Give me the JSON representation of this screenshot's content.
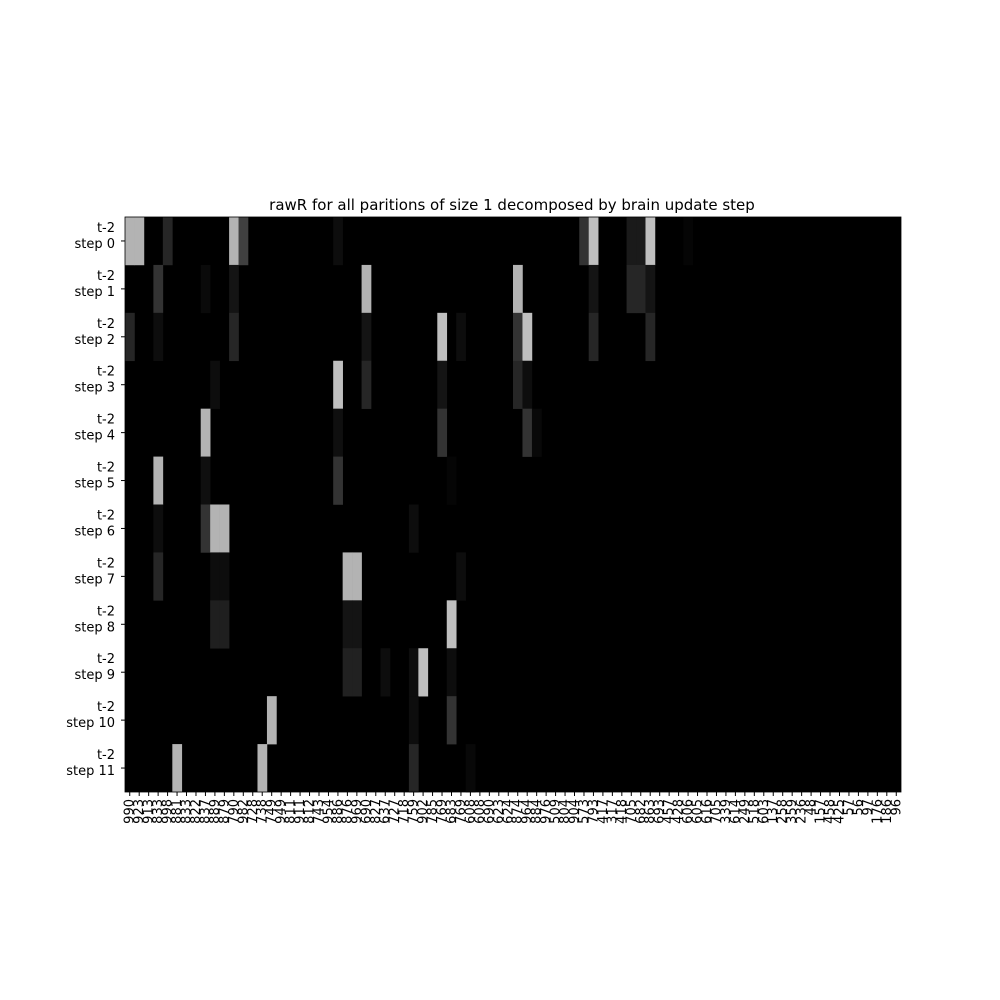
{
  "chart_data": {
    "type": "heatmap",
    "title": "rawR for all paritions of size 1 decomposed by brain update step",
    "colormap": "gray",
    "value_range": [
      0,
      1
    ],
    "colorbar": false,
    "y_labels": [
      [
        "t-2",
        "step 0"
      ],
      [
        "t-2",
        "step 1"
      ],
      [
        "t-2",
        "step 2"
      ],
      [
        "t-2",
        "step 3"
      ],
      [
        "t-2",
        "step 4"
      ],
      [
        "t-2",
        "step 5"
      ],
      [
        "t-2",
        "step 6"
      ],
      [
        "t-2",
        "step 7"
      ],
      [
        "t-2",
        "step 8"
      ],
      [
        "t-2",
        "step 9"
      ],
      [
        "t-2",
        "step 10"
      ],
      [
        "t-2",
        "step 11"
      ]
    ],
    "x_labels": [
      "990",
      "923",
      "913",
      "833",
      "998",
      "881",
      "833",
      "822",
      "837",
      "889",
      "879",
      "790",
      "982",
      "728",
      "738",
      "749",
      "949",
      "811",
      "911",
      "812",
      "743",
      "954",
      "886",
      "876",
      "969",
      "690",
      "827",
      "637",
      "727",
      "718",
      "759",
      "902",
      "785",
      "769",
      "683",
      "769",
      "608",
      "608",
      "690",
      "623",
      "624",
      "874",
      "964",
      "884",
      "976",
      "509",
      "804",
      "904",
      "573",
      "793",
      "417",
      "317",
      "418",
      "705",
      "682",
      "863",
      "693",
      "457",
      "428",
      "606",
      "605",
      "616",
      "705",
      "339",
      "614",
      "249",
      "518",
      "603",
      "137",
      "258",
      "359",
      "236",
      "48",
      "157",
      "458",
      "425",
      "57",
      "56",
      "97",
      "176",
      "186",
      "96"
    ],
    "cells": [
      [
        0,
        0,
        0.7
      ],
      [
        0,
        1,
        0.7
      ],
      [
        0,
        4,
        0.15
      ],
      [
        0,
        11,
        0.7
      ],
      [
        0,
        12,
        0.25
      ],
      [
        0,
        22,
        0.05
      ],
      [
        0,
        48,
        0.2
      ],
      [
        0,
        49,
        0.75
      ],
      [
        0,
        53,
        0.1
      ],
      [
        0,
        54,
        0.1
      ],
      [
        0,
        55,
        0.75
      ],
      [
        0,
        59,
        0.02
      ],
      [
        1,
        3,
        0.2
      ],
      [
        1,
        8,
        0.04
      ],
      [
        1,
        11,
        0.08
      ],
      [
        1,
        25,
        0.7
      ],
      [
        1,
        41,
        0.7
      ],
      [
        1,
        49,
        0.08
      ],
      [
        1,
        53,
        0.15
      ],
      [
        1,
        54,
        0.15
      ],
      [
        1,
        55,
        0.08
      ],
      [
        2,
        0,
        0.15
      ],
      [
        2,
        3,
        0.05
      ],
      [
        2,
        11,
        0.15
      ],
      [
        2,
        25,
        0.08
      ],
      [
        2,
        33,
        0.75
      ],
      [
        2,
        35,
        0.05
      ],
      [
        2,
        41,
        0.2
      ],
      [
        2,
        42,
        0.75
      ],
      [
        2,
        49,
        0.15
      ],
      [
        2,
        55,
        0.15
      ],
      [
        3,
        9,
        0.05
      ],
      [
        3,
        22,
        0.75
      ],
      [
        3,
        25,
        0.15
      ],
      [
        3,
        33,
        0.08
      ],
      [
        3,
        41,
        0.15
      ],
      [
        3,
        42,
        0.05
      ],
      [
        4,
        8,
        0.7
      ],
      [
        4,
        22,
        0.06
      ],
      [
        4,
        33,
        0.2
      ],
      [
        4,
        42,
        0.2
      ],
      [
        4,
        43,
        0.03
      ],
      [
        5,
        3,
        0.7
      ],
      [
        5,
        8,
        0.06
      ],
      [
        5,
        22,
        0.2
      ],
      [
        5,
        34,
        0.02
      ],
      [
        6,
        3,
        0.05
      ],
      [
        6,
        8,
        0.2
      ],
      [
        6,
        9,
        0.7
      ],
      [
        6,
        10,
        0.7
      ],
      [
        6,
        30,
        0.05
      ],
      [
        7,
        3,
        0.15
      ],
      [
        7,
        9,
        0.05
      ],
      [
        7,
        10,
        0.05
      ],
      [
        7,
        23,
        0.7
      ],
      [
        7,
        24,
        0.7
      ],
      [
        7,
        35,
        0.05
      ],
      [
        8,
        9,
        0.12
      ],
      [
        8,
        10,
        0.12
      ],
      [
        8,
        23,
        0.08
      ],
      [
        8,
        24,
        0.08
      ],
      [
        8,
        34,
        0.75
      ],
      [
        9,
        23,
        0.13
      ],
      [
        9,
        24,
        0.13
      ],
      [
        9,
        27,
        0.05
      ],
      [
        9,
        30,
        0.05
      ],
      [
        9,
        31,
        0.75
      ],
      [
        9,
        34,
        0.05
      ],
      [
        10,
        15,
        0.7
      ],
      [
        10,
        30,
        0.05
      ],
      [
        10,
        34,
        0.2
      ],
      [
        11,
        5,
        0.7
      ],
      [
        11,
        14,
        0.7
      ],
      [
        11,
        30,
        0.15
      ],
      [
        11,
        36,
        0.03
      ]
    ]
  }
}
